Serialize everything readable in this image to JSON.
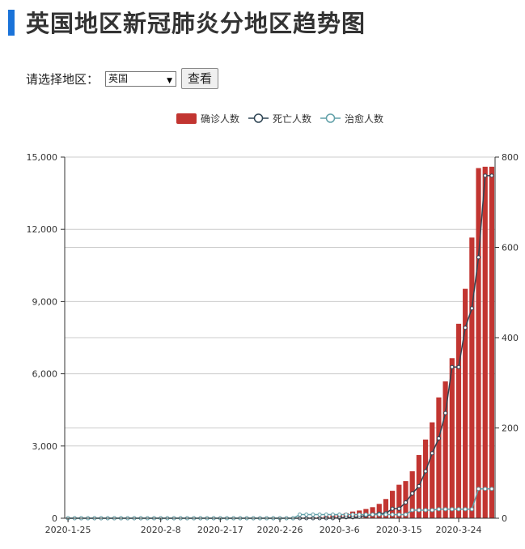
{
  "page": {
    "title": "英国地区新冠肺炎分地区趋势图",
    "region_label": "请选择地区：",
    "region_value": "英国",
    "view_button": "查看"
  },
  "colors": {
    "accent": "#1a73d9",
    "confirmed": "#c23531",
    "deaths": "#2f4554",
    "recovered": "#61a0a8"
  },
  "chart_data": {
    "type": "bar",
    "x": [
      "2020-1-25",
      "2020-1-26",
      "2020-1-27",
      "2020-1-28",
      "2020-1-29",
      "2020-1-30",
      "2020-1-31",
      "2020-2-1",
      "2020-2-2",
      "2020-2-3",
      "2020-2-4",
      "2020-2-5",
      "2020-2-6",
      "2020-2-7",
      "2020-2-8",
      "2020-2-9",
      "2020-2-10",
      "2020-2-11",
      "2020-2-12",
      "2020-2-13",
      "2020-2-14",
      "2020-2-15",
      "2020-2-16",
      "2020-2-17",
      "2020-2-18",
      "2020-2-19",
      "2020-2-20",
      "2020-2-21",
      "2020-2-22",
      "2020-2-23",
      "2020-2-24",
      "2020-2-25",
      "2020-2-26",
      "2020-2-27",
      "2020-2-28",
      "2020-2-29",
      "2020-3-1",
      "2020-3-2",
      "2020-3-3",
      "2020-3-4",
      "2020-3-5",
      "2020-3-6",
      "2020-3-7",
      "2020-3-8",
      "2020-3-9",
      "2020-3-10",
      "2020-3-11",
      "2020-3-12",
      "2020-3-13",
      "2020-3-14",
      "2020-3-15",
      "2020-3-16",
      "2020-3-17",
      "2020-3-18",
      "2020-3-19",
      "2020-3-20",
      "2020-3-21",
      "2020-3-22",
      "2020-3-23",
      "2020-3-24",
      "2020-3-25",
      "2020-3-26",
      "2020-3-27",
      "2020-3-28",
      "2020-3-29"
    ],
    "x_tick_labels": [
      "2020-1-25",
      "2020-2-8",
      "2020-2-17",
      "2020-2-26",
      "2020-3-6",
      "2020-3-15",
      "2020-3-24"
    ],
    "legend": {
      "position": "top-center",
      "items": [
        "确诊人数",
        "死亡人数",
        "治愈人数"
      ]
    },
    "y_left": {
      "ticks": [
        "0",
        "3,000",
        "6,000",
        "9,000",
        "12,000",
        "15,000"
      ],
      "range": [
        0,
        15000
      ]
    },
    "y_right": {
      "ticks": [
        "0",
        "200",
        "400",
        "600",
        "800"
      ],
      "range": [
        0,
        800
      ]
    },
    "series": [
      {
        "name": "确诊人数",
        "type": "bar",
        "axis": "left",
        "values": [
          0,
          0,
          0,
          0,
          0,
          0,
          2,
          2,
          2,
          2,
          2,
          2,
          3,
          3,
          3,
          3,
          8,
          8,
          8,
          9,
          9,
          9,
          9,
          9,
          9,
          9,
          9,
          9,
          9,
          9,
          13,
          13,
          13,
          16,
          20,
          23,
          36,
          40,
          51,
          87,
          116,
          164,
          209,
          278,
          321,
          383,
          460,
          596,
          798,
          1140,
          1391,
          1543,
          1950,
          2626,
          3269,
          3983,
          5018,
          5683,
          6650,
          8077,
          9529,
          11658,
          14543,
          14600,
          14600
        ]
      },
      {
        "name": "死亡人数",
        "type": "line",
        "axis": "right",
        "values": [
          0,
          0,
          0,
          0,
          0,
          0,
          0,
          0,
          0,
          0,
          0,
          0,
          0,
          0,
          0,
          0,
          0,
          0,
          0,
          0,
          0,
          0,
          0,
          0,
          0,
          0,
          0,
          0,
          0,
          0,
          0,
          0,
          0,
          0,
          0,
          0,
          0,
          0,
          0,
          0,
          0,
          1,
          2,
          2,
          3,
          6,
          8,
          10,
          11,
          21,
          21,
          35,
          55,
          71,
          104,
          144,
          177,
          233,
          335,
          335,
          422,
          465,
          578,
          759,
          759
        ]
      },
      {
        "name": "治愈人数",
        "type": "line",
        "axis": "right",
        "values": [
          0,
          0,
          0,
          0,
          0,
          0,
          0,
          0,
          0,
          0,
          0,
          0,
          0,
          0,
          0,
          0,
          0,
          0,
          0,
          0,
          0,
          0,
          0,
          0,
          0,
          0,
          0,
          0,
          0,
          0,
          0,
          0,
          0,
          0,
          0,
          8,
          8,
          8,
          8,
          8,
          8,
          8,
          8,
          8,
          8,
          8,
          8,
          8,
          8,
          8,
          8,
          8,
          18,
          18,
          18,
          18,
          20,
          20,
          20,
          20,
          20,
          20,
          65,
          65,
          65
        ]
      }
    ]
  }
}
